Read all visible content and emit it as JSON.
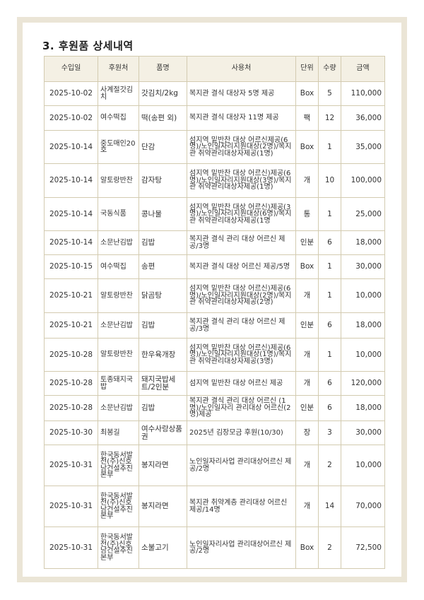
{
  "title": "3. 후원품 상세내역",
  "columns": [
    "수입일",
    "후원처",
    "품명",
    "사용처",
    "단위",
    "수량",
    "금액"
  ],
  "rows": [
    {
      "date": "2025-10-02",
      "donor": "사계절갓김치",
      "item": "갓김치/2kg",
      "usage": "복지관 결식 대상자 5명 제공",
      "unit": "Box",
      "qty": "5",
      "amount": "110,000"
    },
    {
      "date": "2025-10-02",
      "donor": "여수떡집",
      "item": "떡(송편 외)",
      "usage": "복지관 결식 대상자 11명 제공",
      "unit": "팩",
      "qty": "12",
      "amount": "36,000"
    },
    {
      "date": "2025-10-14",
      "donor": "중도매인20호",
      "item": "단감",
      "usage": "섬지역 밑반찬 대상 어르신제공(6명)/노인일자리지원대상(2명)/복지관 취약관리대상자제공(1명)",
      "unit": "Box",
      "qty": "1",
      "amount": "35,000"
    },
    {
      "date": "2025-10-14",
      "donor": "알토랑반찬",
      "item": "감자탕",
      "usage": "섬지역 밑반찬 대상 어르신)제공(6명)/노인일자리지원대상(3명)/복지관 취약관리대상자제공(1명)",
      "unit": "개",
      "qty": "10",
      "amount": "100,000"
    },
    {
      "date": "2025-10-14",
      "donor": "국동식품",
      "item": "콩나물",
      "usage": "섬지역 밑반찬 대상 어르신)제공(3명)/노인일자리지원대상(6명)/복지관 취약관리대상자제공(1명",
      "unit": "통",
      "qty": "1",
      "amount": "25,000"
    },
    {
      "date": "2025-10-14",
      "donor": "소문난김밥",
      "item": "김밥",
      "usage": "복지관 결식 관리 대상 어르신 제공/3명",
      "unit": "인분",
      "qty": "6",
      "amount": "18,000"
    },
    {
      "date": "2025-10-15",
      "donor": "여수떡집",
      "item": "송편",
      "usage": "복지관 결식 대상 어르신 제공/5명",
      "unit": "Box",
      "qty": "1",
      "amount": "30,000"
    },
    {
      "date": "2025-10-21",
      "donor": "알토랑반찬",
      "item": "닭곰탕",
      "usage": "섬지역 밑반찬 대상 어르신)제공(6명)/노인일자리지원대상(2명)/복지관 취약관리대상자제공(2명)",
      "unit": "개",
      "qty": "1",
      "amount": "10,000"
    },
    {
      "date": "2025-10-21",
      "donor": "소문난김밥",
      "item": "김밥",
      "usage": "복지관 결식 관리 대상 어르신 제공/3명",
      "unit": "인분",
      "qty": "6",
      "amount": "18,000"
    },
    {
      "date": "2025-10-28",
      "donor": "알토랑반찬",
      "item": "한우육개장",
      "usage": "섬지역 밑반찬 대상 어르신)제공(6명)/노인일자리지원대상(1명)/복지관 취약관리대상자제공(3명)",
      "unit": "개",
      "qty": "1",
      "amount": "10,000"
    },
    {
      "date": "2025-10-28",
      "donor": "토종돼지국밥",
      "item": "돼지국밥세트/2인분",
      "usage": "섬지역 밑반찬 대상 어르신 제공",
      "unit": "개",
      "qty": "6",
      "amount": "120,000"
    },
    {
      "date": "2025-10-28",
      "donor": "소문난김밥",
      "item": "김밥",
      "usage": "복지관 결식 관리 대상 어르신 (1명)/노인일자리 관리대상 어르신(2명)제공",
      "unit": "인분",
      "qty": "6",
      "amount": "18,000"
    },
    {
      "date": "2025-10-30",
      "donor": "최봉길",
      "item": "여수사랑상품권",
      "usage": "2025년 김장모금 후원(10/30)",
      "unit": "장",
      "qty": "3",
      "amount": "30,000"
    },
    {
      "date": "2025-10-31",
      "donor": "한국동서발전(주)신호남건설추진본부",
      "item": "봉지라면",
      "usage": "노인일자리사업 관리대상어르신 제공/2명",
      "unit": "개",
      "qty": "2",
      "amount": "10,000"
    },
    {
      "date": "2025-10-31",
      "donor": "한국동서발전(주)신호남건설추진본부",
      "item": "봉지라면",
      "usage": "복지관 취약계층 관리대상 어르신 제공/14명",
      "unit": "개",
      "qty": "14",
      "amount": "70,000"
    },
    {
      "date": "2025-10-31",
      "donor": "한국동서발전(주)신호남건설추진본부",
      "item": "소불고기",
      "usage": "노인일자리사업 관리대상어르신 제공/2명",
      "unit": "Box",
      "qty": "2",
      "amount": "72,500"
    }
  ]
}
